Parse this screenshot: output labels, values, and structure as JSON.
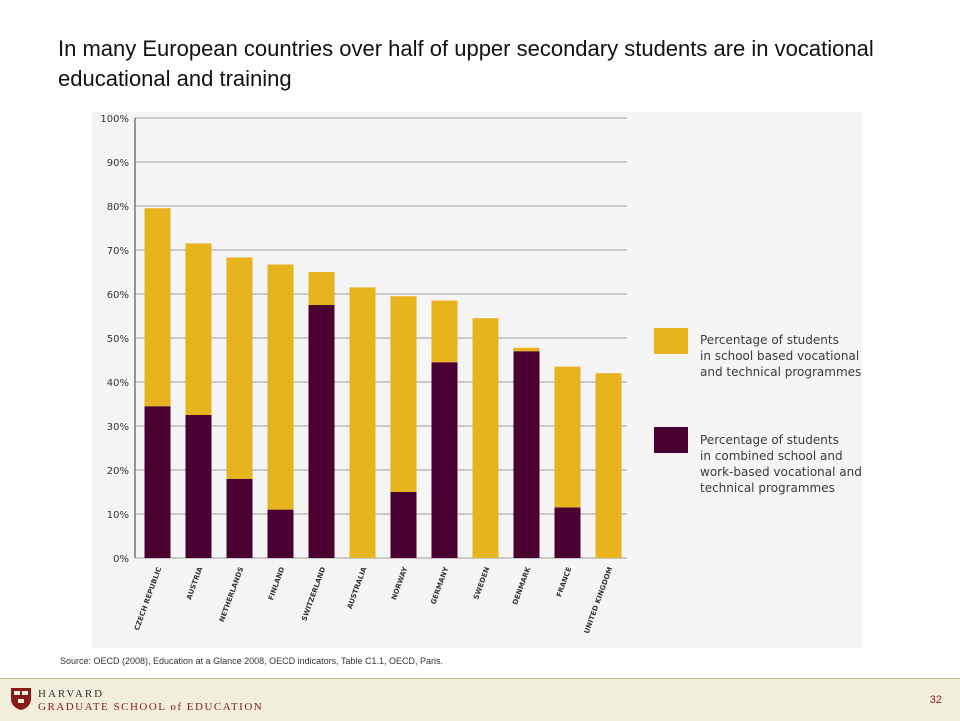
{
  "slide": {
    "title": "In many European countries over half of upper secondary students are in vocational educational and training",
    "source": "Source: OECD (2008), Education at a Glance 2008, OECD indicators, Table C1.1, OECD, Paris.",
    "page_number": "32"
  },
  "footer": {
    "line1": "HARVARD",
    "line2": "GRADUATE SCHOOL of EDUCATION"
  },
  "colors": {
    "school_based": "#e8b41e",
    "combined": "#4a0030",
    "grid": "#9a9a9a",
    "panel": "#f5f5f5"
  },
  "legend": {
    "school_based": [
      "Percentage of students",
      "in school based vocational",
      "and technical programmes"
    ],
    "combined": [
      "Percentage of students",
      "in combined school and",
      "work-based vocational and",
      "technical programmes"
    ]
  },
  "chart_data": {
    "type": "bar",
    "stacked": true,
    "categories": [
      "CZECH REPUBLIC",
      "AUSTRIA",
      "NETHERLANDS",
      "FINLAND",
      "SWITZERLAND",
      "AUSTRALIA",
      "NORWAY",
      "GERMANY",
      "SWEDEN",
      "DENMARK",
      "FRANCE",
      "UNITED KINGDOM"
    ],
    "series": [
      {
        "name": "Percentage of students in combined school and work-based vocational and technical programmes",
        "color_key": "combined",
        "values": [
          34.5,
          32.5,
          18,
          11,
          57.5,
          0,
          15,
          44.5,
          0,
          47,
          11.5,
          0
        ]
      },
      {
        "name": "Percentage of students in school based vocational and technical programmes",
        "color_key": "school_based",
        "values": [
          45,
          39,
          50.3,
          55.7,
          7.5,
          61.5,
          44.5,
          14,
          54.5,
          0.8,
          32,
          42
        ]
      }
    ],
    "ylim": [
      0,
      100
    ],
    "yticks": [
      0,
      10,
      20,
      30,
      40,
      50,
      60,
      70,
      80,
      90,
      100
    ],
    "ytick_labels": [
      "0%",
      "10%",
      "20%",
      "30%",
      "40%",
      "50%",
      "60%",
      "70%",
      "80%",
      "90%",
      "100%"
    ],
    "grid": true,
    "legend_position": "right"
  }
}
